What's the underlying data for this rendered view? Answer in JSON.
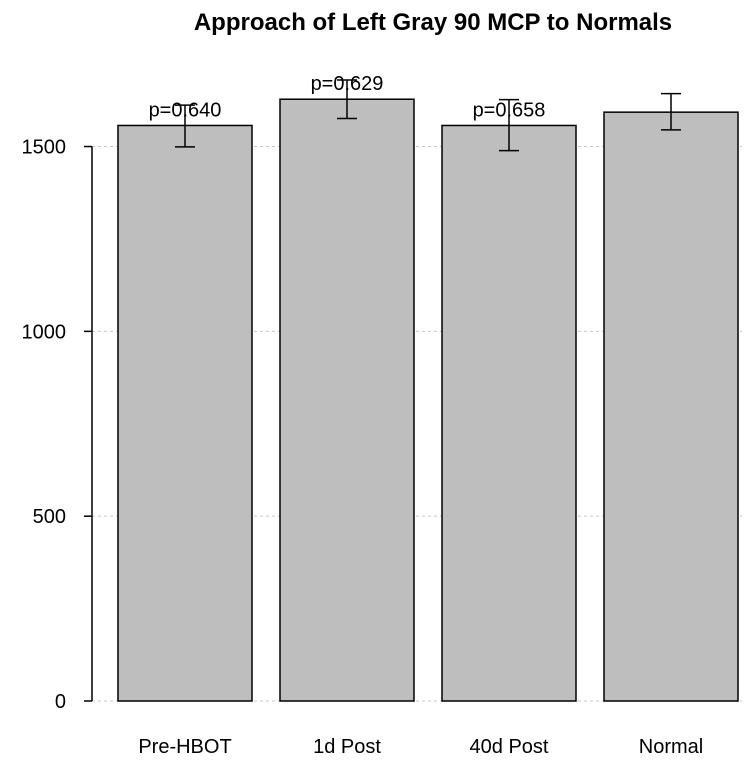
{
  "chart_data": {
    "type": "bar",
    "title": "Approach of Left Gray 90 MCP to Normals",
    "xlabel": "",
    "ylabel": "",
    "categories": [
      "Pre-HBOT",
      "1d Post",
      "40d Post",
      "Normal"
    ],
    "values": [
      1557,
      1628,
      1557,
      1593
    ],
    "error_low": [
      1499,
      1576,
      1489,
      1545
    ],
    "error_high": [
      1612,
      1680,
      1627,
      1643
    ],
    "annotations": [
      "p=0.640",
      "p=0.629",
      "p=0.658",
      ""
    ],
    "yticks": [
      0,
      500,
      1000,
      1500
    ],
    "ylim": [
      0,
      1680
    ],
    "grid": true,
    "bar_color": "#bebebe"
  }
}
